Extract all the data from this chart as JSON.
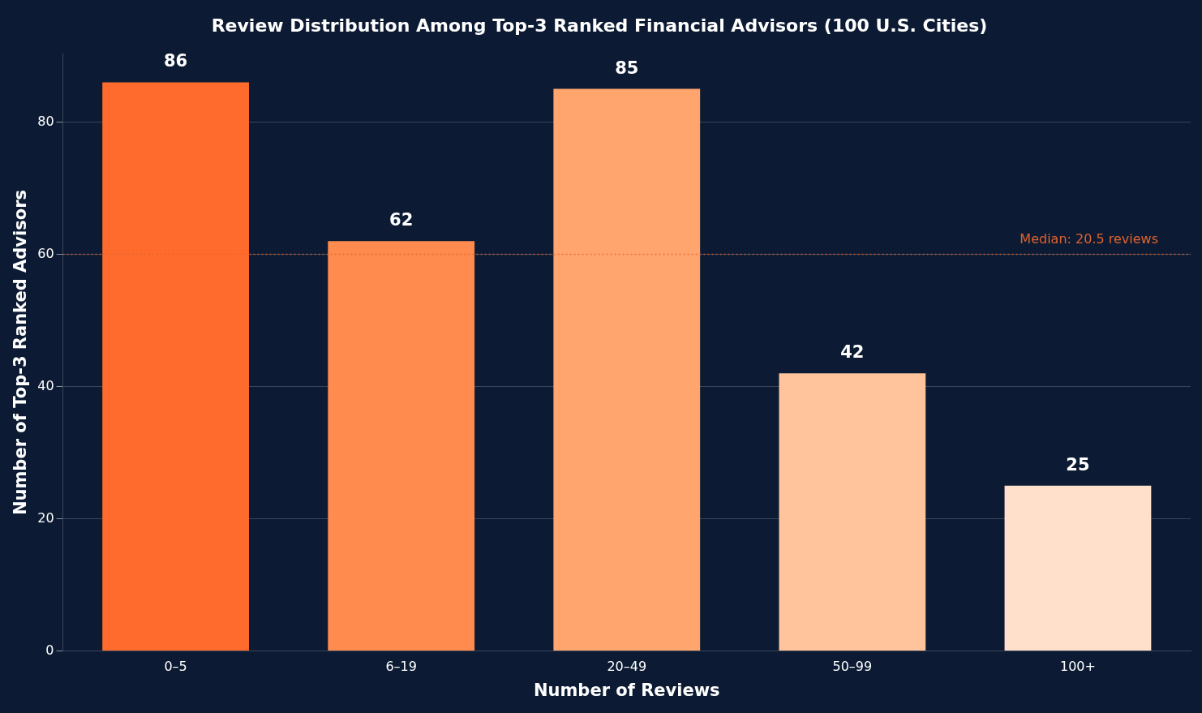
{
  "chart_data": {
    "type": "bar",
    "title": "Review Distribution Among Top-3 Ranked Financial Advisors (100 U.S. Cities)",
    "xlabel": "Number of Reviews",
    "ylabel": "Number of Top-3 Ranked Advisors",
    "categories": [
      "0–5",
      "6–19",
      "20–49",
      "50–99",
      "100+"
    ],
    "values": [
      86,
      62,
      85,
      42,
      25
    ],
    "colors": [
      "#ff6b2c",
      "#ff8b4e",
      "#ffa56d",
      "#ffc49b",
      "#ffe0cb"
    ],
    "ylim": [
      0,
      90.3
    ],
    "yticks": [
      0,
      20,
      40,
      60,
      80
    ],
    "grid": "y",
    "legend": false,
    "data_labels": true,
    "annotations": [
      "Median: 20.5 reviews"
    ],
    "ref_lines": [
      {
        "axis": "y",
        "value": 60,
        "color": "#e0622f",
        "line_style": "dotted"
      }
    ]
  }
}
